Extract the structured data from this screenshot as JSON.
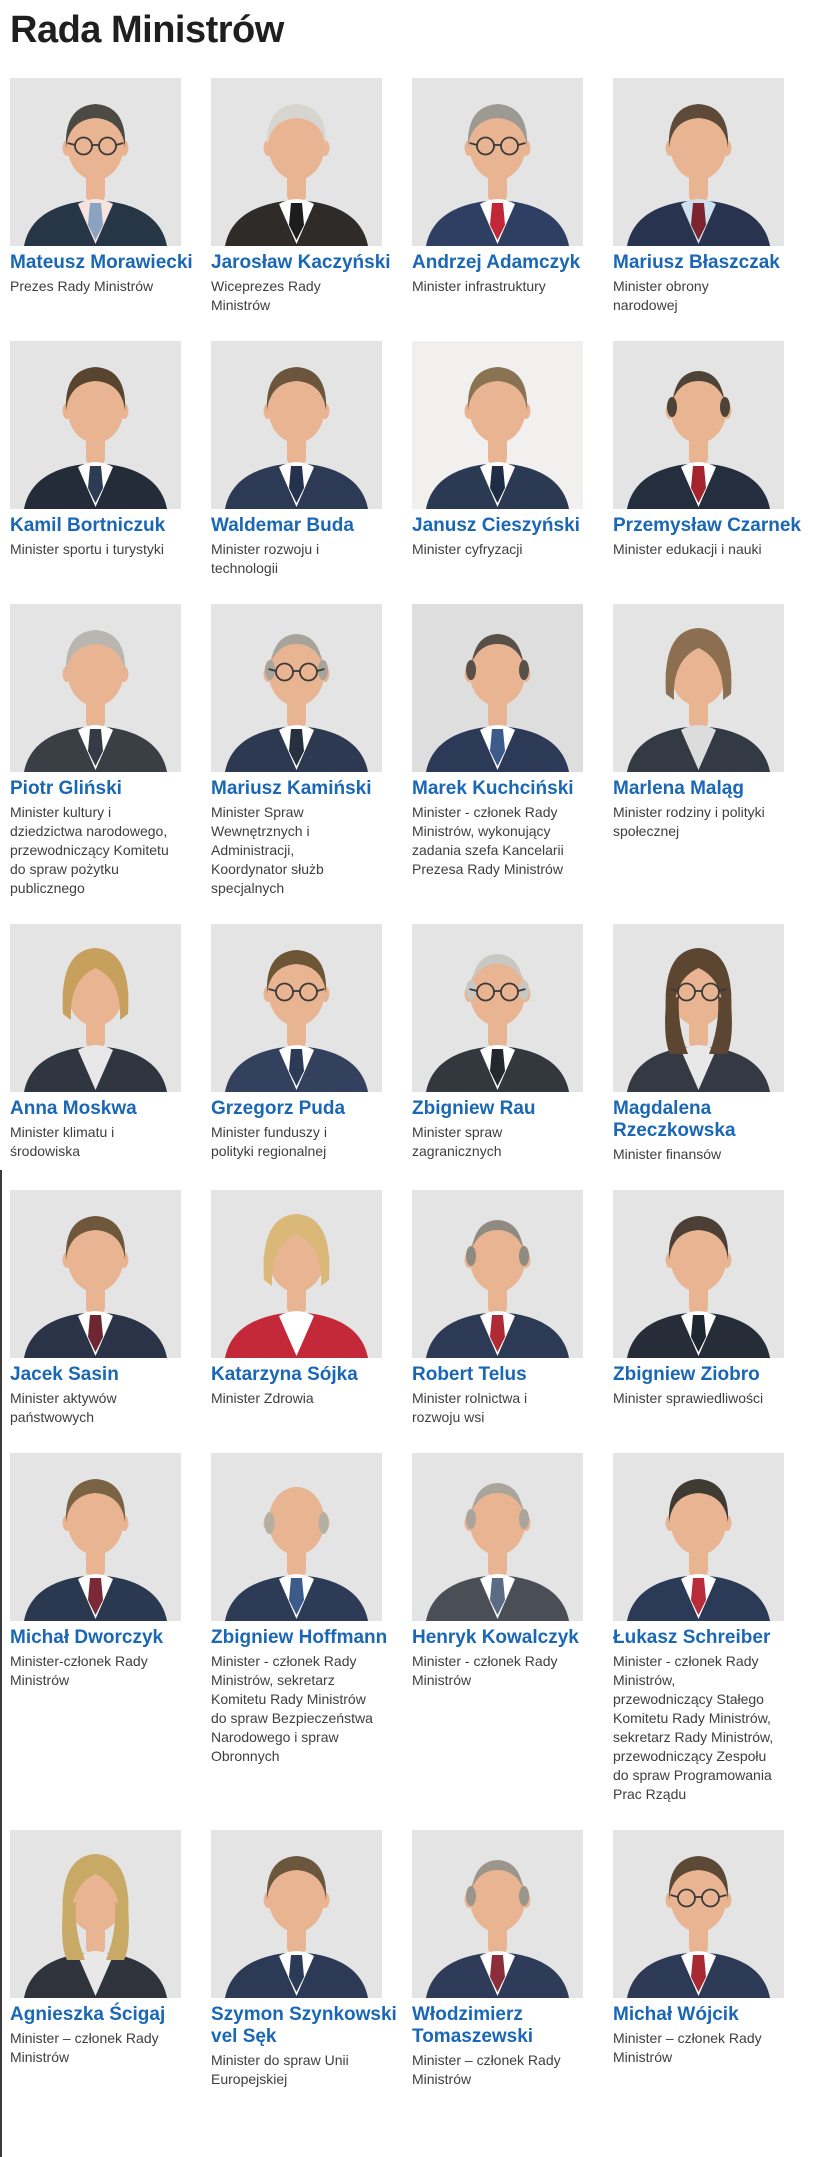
{
  "page": {
    "title": "Rada Ministrów"
  },
  "colors": {
    "title_dark": "#1f1f1f",
    "link_blue": "#1a67b5",
    "role_gray": "#3e3e3e",
    "photo_bg": "#e4e4e4",
    "skin": "#e9b492"
  },
  "ministers": [
    {
      "name": "Mateusz Morawiecki",
      "role": "Prezes Rady Ministrów",
      "portrait": {
        "suit": "#273647",
        "shirt": "#f5e4de",
        "tie": "#8ba3c0",
        "hair": "#4c4a45",
        "style": "short",
        "glasses": true
      }
    },
    {
      "name": "Jarosław Kaczyński",
      "role": "Wiceprezes Rady\nMinistrów",
      "portrait": {
        "suit": "#2e2b29",
        "shirt": "#ffffff",
        "tie": "#1d1d1d",
        "hair": "#d7d5d0",
        "style": "short",
        "glasses": false
      }
    },
    {
      "name": "Andrzej Adamczyk",
      "role": "Minister infrastruktury",
      "portrait": {
        "suit": "#2e3f63",
        "shirt": "#ffffff",
        "tie": "#c22737",
        "hair": "#9d9a94",
        "style": "short",
        "glasses": true
      }
    },
    {
      "name": "Mariusz Błaszczak",
      "role": "Minister obrony\nnarodowej",
      "portrait": {
        "suit": "#27334f",
        "shirt": "#cfe0ef",
        "tie": "#7c2430",
        "hair": "#5d4a38",
        "style": "short",
        "glasses": false
      }
    },
    {
      "name": "Kamil Bortniczuk",
      "role": "Minister sportu i turystyki",
      "portrait": {
        "suit": "#232c38",
        "shirt": "#ffffff",
        "tie": "#2c3c55",
        "hair": "#59452f",
        "style": "short",
        "glasses": false
      }
    },
    {
      "name": "Waldemar Buda",
      "role": "Minister rozwoju i\ntechnologii",
      "portrait": {
        "suit": "#2c3a55",
        "shirt": "#ffffff",
        "tie": "#24324d",
        "hair": "#6b553d",
        "style": "short",
        "glasses": false
      }
    },
    {
      "name": "Janusz Cieszyński",
      "role": "Minister cyfryzacji",
      "portrait": {
        "suit": "#2b3a52",
        "shirt": "#ffffff",
        "tie": "#1f2c45",
        "hair": "#8a7352",
        "style": "short",
        "glasses": false,
        "bg": "#f1f0ee"
      }
    },
    {
      "name": "Przemysław Czarnek",
      "role": "Minister edukacji i nauki",
      "portrait": {
        "suit": "#252e3e",
        "shirt": "#ffffff",
        "tie": "#a3242e",
        "hair": "#4d4437",
        "style": "recede",
        "glasses": false
      }
    },
    {
      "name": "Piotr Gliński",
      "role": "Minister kultury i\ndziedzictwa narodowego,\nprzewodniczący Komitetu\ndo spraw pożytku\npublicznego",
      "portrait": {
        "suit": "#3a3f46",
        "shirt": "#ffffff",
        "tie": "#343b46",
        "hair": "#b9b6b0",
        "style": "short",
        "glasses": false
      }
    },
    {
      "name": "Mariusz Kamiński",
      "role": "Minister Spraw\nWewnętrznych i\nAdministracji,\nKoordynator służb\nspecjalnych",
      "portrait": {
        "suit": "#2d3950",
        "shirt": "#ffffff",
        "tie": "#27303f",
        "hair": "#a8a49c",
        "style": "recede",
        "glasses": true
      }
    },
    {
      "name": "Marek Kuchciński",
      "role": "Minister - członek Rady\nMinistrów, wykonujący\nzadania szefa Kancelarii\nPrezesa Rady Ministrów",
      "portrait": {
        "suit": "#2c3a57",
        "shirt": "#ffffff",
        "tie": "#3c5a8c",
        "hair": "#575049",
        "style": "recede",
        "glasses": false,
        "bg": "#dedede"
      }
    },
    {
      "name": "Marlena Maląg",
      "role": "Minister rodziny i polityki\nspołecznej",
      "portrait": {
        "suit": "#333a44",
        "shirt": "#dcdcdc",
        "tie": "",
        "hair": "#8b6f50",
        "style": "bob",
        "glasses": false
      }
    },
    {
      "name": "Anna Moskwa",
      "role": "Minister klimatu i\nśrodowiska",
      "portrait": {
        "suit": "#2f3640",
        "shirt": "#e8e8e8",
        "tie": "",
        "hair": "#c8a05e",
        "style": "bob",
        "glasses": false
      }
    },
    {
      "name": "Grzegorz Puda",
      "role": "Minister funduszy i\npolityki regionalnej",
      "portrait": {
        "suit": "#33415f",
        "shirt": "#ffffff",
        "tie": "#2b3a57",
        "hair": "#6d5636",
        "style": "short",
        "glasses": true
      }
    },
    {
      "name": "Zbigniew Rau",
      "role": "Minister spraw\nzagranicznych",
      "portrait": {
        "suit": "#33373e",
        "shirt": "#ffffff",
        "tie": "#23272e",
        "hair": "#c9c7c2",
        "style": "recede",
        "glasses": true
      }
    },
    {
      "name": "Magdalena Rzeczkowska",
      "role": "Minister finansów",
      "portrait": {
        "suit": "#343944",
        "shirt": "#e8e8e8",
        "tie": "",
        "hair": "#5d4631",
        "style": "long",
        "glasses": true
      }
    },
    {
      "name": "Jacek Sasin",
      "role": "Minister aktywów\npaństwowych",
      "portrait": {
        "suit": "#2a3347",
        "shirt": "#ffffff",
        "tie": "#6e2730",
        "hair": "#6e573a",
        "style": "short",
        "glasses": false
      }
    },
    {
      "name": "Katarzyna Sójka",
      "role": "Minister Zdrowia",
      "portrait": {
        "suit": "#c4293a",
        "shirt": "#ffffff",
        "tie": "",
        "hair": "#d9b878",
        "style": "bob",
        "glasses": false
      }
    },
    {
      "name": "Robert Telus",
      "role": "Minister rolnictwa i\nrozwoju wsi",
      "portrait": {
        "suit": "#2c3a55",
        "shirt": "#ffffff",
        "tie": "#b02a35",
        "hair": "#8f8a82",
        "style": "recede",
        "glasses": false
      }
    },
    {
      "name": "Zbigniew Ziobro",
      "role": "Minister sprawiedliwości",
      "portrait": {
        "suit": "#262d39",
        "shirt": "#ffffff",
        "tie": "#1e2631",
        "hair": "#4c4036",
        "style": "short",
        "glasses": false
      }
    },
    {
      "name": "Michał Dworczyk",
      "role": "Minister-członek Rady\nMinistrów",
      "portrait": {
        "suit": "#2b3950",
        "shirt": "#ffffff",
        "tie": "#7a2936",
        "hair": "#7a6345",
        "style": "short",
        "glasses": false
      }
    },
    {
      "name": "Zbigniew Hoffmann",
      "role": "Minister - członek Rady\nMinistrów, sekretarz\nKomitetu Rady Ministrów\ndo spraw Bezpieczeństwa\nNarodowego i spraw\nObronnych",
      "portrait": {
        "suit": "#2d3b56",
        "shirt": "#ffffff",
        "tie": "#3c5a8a",
        "hair": "#b5aea3",
        "style": "bald",
        "glasses": false
      }
    },
    {
      "name": "Henryk Kowalczyk",
      "role": "Minister - członek Rady\nMinistrów",
      "portrait": {
        "suit": "#4a4f57",
        "shirt": "#ffffff",
        "tie": "#5b6b85",
        "hair": "#a9a49c",
        "style": "recede",
        "glasses": false
      }
    },
    {
      "name": "Łukasz Schreiber",
      "role": "Minister - członek Rady\nMinistrów,\nprzewodniczący Stałego\nKomitetu Rady Ministrów,\nsekretarz Rady Ministrów,\nprzewodniczący Zespołu\ndo spraw Programowania\nPrac Rządu",
      "portrait": {
        "suit": "#2b3a57",
        "shirt": "#ffffff",
        "tie": "#b92b38",
        "hair": "#3f3a32",
        "style": "short",
        "glasses": false
      }
    },
    {
      "name": "Agnieszka Ścigaj",
      "role": "Minister – członek Rady\nMinistrów",
      "portrait": {
        "suit": "#2f333c",
        "shirt": "#e8e8e8",
        "tie": "",
        "hair": "#c9a966",
        "style": "long",
        "glasses": false
      }
    },
    {
      "name": "Szymon Szynkowski vel Sęk",
      "role": "Minister do spraw Unii\nEuropejskiej",
      "portrait": {
        "suit": "#2c3a55",
        "shirt": "#ffffff",
        "tie": "#2b3a57",
        "hair": "#6b573e",
        "style": "short",
        "glasses": false
      }
    },
    {
      "name": "Włodzimierz Tomaszewski",
      "role": "Minister – członek Rady\nMinistrów",
      "portrait": {
        "suit": "#2e3c59",
        "shirt": "#ffffff",
        "tie": "#8c2d3a",
        "hair": "#9b958c",
        "style": "recede",
        "glasses": false
      }
    },
    {
      "name": "Michał Wójcik",
      "role": "Minister – członek Rady\nMinistrów",
      "portrait": {
        "suit": "#2c3a55",
        "shirt": "#ffffff",
        "tie": "#a82834",
        "hair": "#5c4a36",
        "style": "short",
        "glasses": true
      }
    }
  ]
}
